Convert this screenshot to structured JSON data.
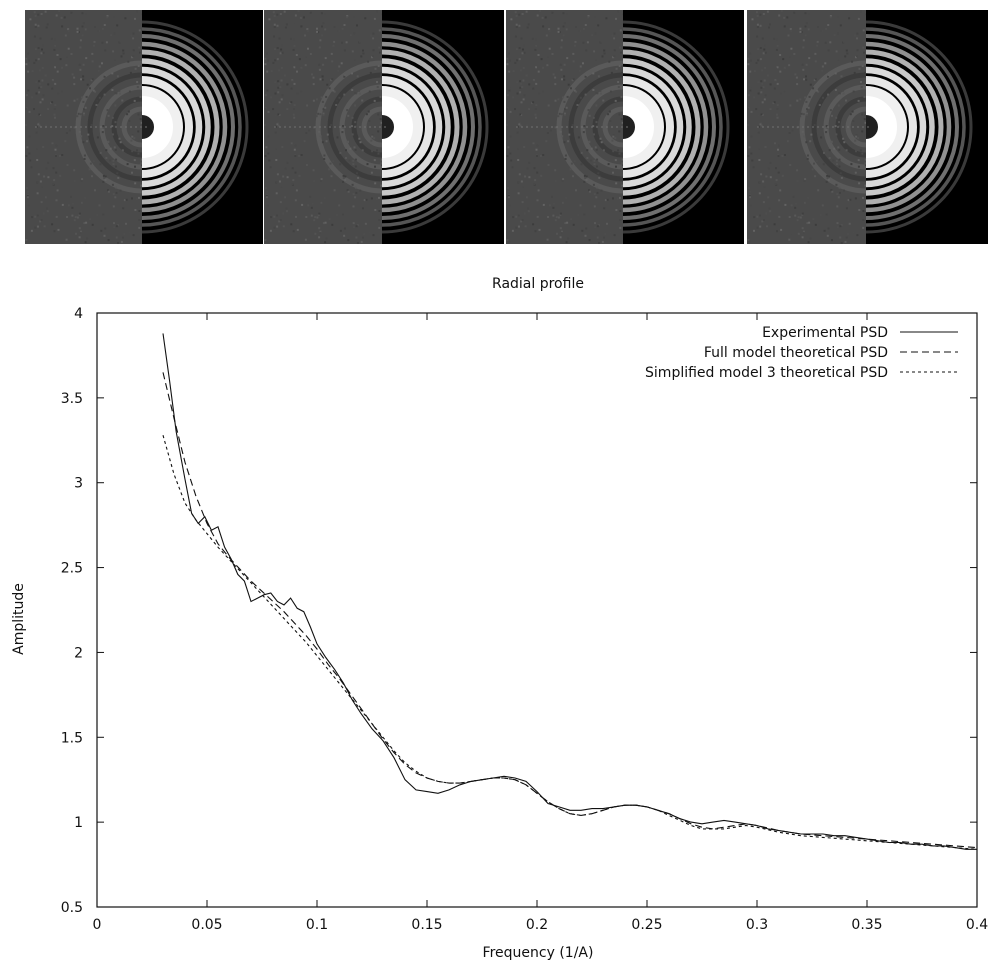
{
  "panels": [
    {
      "label": "panel-1"
    },
    {
      "label": "panel-2"
    },
    {
      "label": "panel-3"
    },
    {
      "label": "panel-4"
    }
  ],
  "chart_data": {
    "type": "line",
    "title": "Radial profile",
    "xlabel": "Frequency (1/A)",
    "ylabel": "Amplitude",
    "xlim": [
      0,
      0.4
    ],
    "ylim": [
      0.5,
      4
    ],
    "xticks": [
      "0",
      "0.05",
      "0.1",
      "0.15",
      "0.2",
      "0.25",
      "0.3",
      "0.35",
      "0.4"
    ],
    "yticks": [
      "0.5",
      "1",
      "1.5",
      "2",
      "2.5",
      "3",
      "3.5",
      "4"
    ],
    "legend_position": "top-right",
    "series": [
      {
        "name": "Experimental PSD",
        "style": "solid",
        "x": [
          0.03,
          0.033,
          0.036,
          0.04,
          0.043,
          0.046,
          0.049,
          0.052,
          0.055,
          0.058,
          0.061,
          0.064,
          0.067,
          0.07,
          0.073,
          0.076,
          0.079,
          0.082,
          0.085,
          0.088,
          0.091,
          0.094,
          0.097,
          0.1,
          0.104,
          0.108,
          0.112,
          0.116,
          0.12,
          0.125,
          0.13,
          0.135,
          0.14,
          0.145,
          0.15,
          0.155,
          0.16,
          0.165,
          0.17,
          0.175,
          0.18,
          0.185,
          0.19,
          0.195,
          0.2,
          0.205,
          0.21,
          0.215,
          0.22,
          0.225,
          0.23,
          0.235,
          0.24,
          0.245,
          0.25,
          0.255,
          0.26,
          0.265,
          0.27,
          0.275,
          0.28,
          0.285,
          0.29,
          0.295,
          0.3,
          0.305,
          0.31,
          0.315,
          0.32,
          0.325,
          0.33,
          0.335,
          0.34,
          0.345,
          0.35,
          0.355,
          0.36,
          0.365,
          0.37,
          0.375,
          0.38,
          0.385,
          0.39,
          0.395,
          0.4
        ],
        "y": [
          3.88,
          3.6,
          3.3,
          3.02,
          2.82,
          2.76,
          2.8,
          2.72,
          2.74,
          2.62,
          2.55,
          2.46,
          2.42,
          2.3,
          2.32,
          2.34,
          2.35,
          2.3,
          2.28,
          2.32,
          2.26,
          2.24,
          2.15,
          2.05,
          1.97,
          1.9,
          1.82,
          1.72,
          1.64,
          1.55,
          1.48,
          1.38,
          1.25,
          1.19,
          1.18,
          1.17,
          1.19,
          1.22,
          1.24,
          1.25,
          1.26,
          1.27,
          1.26,
          1.24,
          1.18,
          1.11,
          1.09,
          1.07,
          1.07,
          1.08,
          1.08,
          1.09,
          1.1,
          1.1,
          1.09,
          1.07,
          1.05,
          1.02,
          1.0,
          0.99,
          1.0,
          1.01,
          1.0,
          0.99,
          0.98,
          0.96,
          0.95,
          0.94,
          0.93,
          0.93,
          0.93,
          0.92,
          0.92,
          0.91,
          0.9,
          0.89,
          0.88,
          0.88,
          0.87,
          0.87,
          0.86,
          0.86,
          0.85,
          0.84,
          0.84
        ]
      },
      {
        "name": "Full model theoretical PSD",
        "style": "dashed",
        "x": [
          0.03,
          0.035,
          0.04,
          0.045,
          0.05,
          0.055,
          0.06,
          0.065,
          0.07,
          0.075,
          0.08,
          0.085,
          0.09,
          0.095,
          0.1,
          0.105,
          0.11,
          0.115,
          0.12,
          0.125,
          0.13,
          0.135,
          0.14,
          0.145,
          0.15,
          0.155,
          0.16,
          0.165,
          0.17,
          0.175,
          0.18,
          0.185,
          0.19,
          0.195,
          0.2,
          0.205,
          0.21,
          0.215,
          0.22,
          0.225,
          0.23,
          0.235,
          0.24,
          0.245,
          0.25,
          0.255,
          0.26,
          0.265,
          0.27,
          0.275,
          0.28,
          0.285,
          0.29,
          0.295,
          0.3,
          0.31,
          0.32,
          0.33,
          0.34,
          0.35,
          0.36,
          0.37,
          0.38,
          0.39,
          0.4
        ],
        "y": [
          3.65,
          3.38,
          3.12,
          2.92,
          2.76,
          2.64,
          2.56,
          2.49,
          2.42,
          2.36,
          2.3,
          2.24,
          2.17,
          2.1,
          2.02,
          1.93,
          1.85,
          1.76,
          1.67,
          1.58,
          1.49,
          1.41,
          1.34,
          1.29,
          1.26,
          1.24,
          1.23,
          1.23,
          1.24,
          1.25,
          1.26,
          1.26,
          1.25,
          1.22,
          1.17,
          1.12,
          1.08,
          1.05,
          1.04,
          1.05,
          1.07,
          1.09,
          1.1,
          1.1,
          1.09,
          1.07,
          1.05,
          1.02,
          0.99,
          0.97,
          0.96,
          0.97,
          0.98,
          0.99,
          0.98,
          0.95,
          0.93,
          0.92,
          0.91,
          0.9,
          0.89,
          0.88,
          0.87,
          0.86,
          0.85
        ]
      },
      {
        "name": "Simplified model 3 theoretical PSD",
        "style": "dotted",
        "x": [
          0.03,
          0.035,
          0.04,
          0.045,
          0.05,
          0.055,
          0.06,
          0.065,
          0.07,
          0.075,
          0.08,
          0.085,
          0.09,
          0.095,
          0.1,
          0.105,
          0.11,
          0.115,
          0.12,
          0.125,
          0.13,
          0.135,
          0.14,
          0.145,
          0.15,
          0.155,
          0.16,
          0.165,
          0.17,
          0.175,
          0.18,
          0.185,
          0.19,
          0.195,
          0.2,
          0.205,
          0.21,
          0.215,
          0.22,
          0.225,
          0.23,
          0.235,
          0.24,
          0.245,
          0.25,
          0.255,
          0.26,
          0.265,
          0.27,
          0.275,
          0.28,
          0.285,
          0.29,
          0.295,
          0.3,
          0.31,
          0.32,
          0.33,
          0.34,
          0.35,
          0.36,
          0.37,
          0.38,
          0.39,
          0.4
        ],
        "y": [
          3.28,
          3.05,
          2.88,
          2.78,
          2.7,
          2.62,
          2.55,
          2.48,
          2.41,
          2.34,
          2.27,
          2.2,
          2.13,
          2.06,
          1.98,
          1.9,
          1.82,
          1.74,
          1.66,
          1.58,
          1.5,
          1.42,
          1.35,
          1.3,
          1.26,
          1.24,
          1.23,
          1.23,
          1.24,
          1.25,
          1.26,
          1.26,
          1.25,
          1.22,
          1.17,
          1.12,
          1.08,
          1.05,
          1.04,
          1.05,
          1.07,
          1.09,
          1.1,
          1.1,
          1.09,
          1.07,
          1.04,
          1.01,
          0.98,
          0.96,
          0.96,
          0.96,
          0.97,
          0.98,
          0.97,
          0.94,
          0.92,
          0.91,
          0.9,
          0.89,
          0.88,
          0.87,
          0.86,
          0.85,
          0.84
        ]
      }
    ]
  }
}
